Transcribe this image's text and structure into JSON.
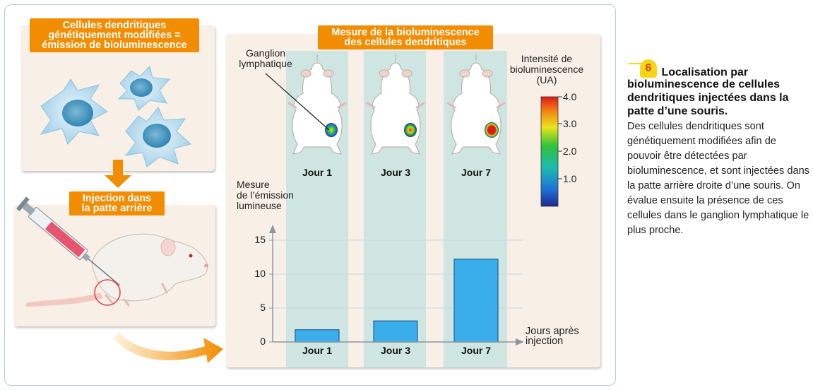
{
  "figure": {
    "label_cells": "Cellules dendritiques\ngénétiquement modifiées =\némission de bioluminescence",
    "label_injection": "Injection dans\nla patte arrière",
    "label_measure": "Mesure de la bioluminescence\ndes cellules dendritiques",
    "ganglion_label": "Ganglion\nlymphatique",
    "intensity_title": "Intensité de\nbioluminescence\n(UA)",
    "color_scale_ticks": [
      "4.0",
      "3.0",
      "2.0",
      "1.0"
    ],
    "mouse_day_labels": [
      "Jour 1",
      "Jour 3",
      "Jour 7"
    ]
  },
  "colors": {
    "orange": "#f28c00",
    "panel": "#f8efe6",
    "column": "#cfe5e1",
    "bar": "#3aaeea"
  },
  "chart_data": {
    "type": "bar",
    "categories": [
      "Jour 1",
      "Jour 3",
      "Jour 7"
    ],
    "values": [
      1.8,
      3.1,
      12.2
    ],
    "ylabel": "Mesure\nde l’émission\nlumineuse",
    "xlabel": "Jours après\ninjection",
    "ylim": [
      0,
      17
    ],
    "yticks": [
      0,
      5,
      10,
      15
    ],
    "grid": true
  },
  "caption": {
    "number": "6",
    "title_first": "Localisation par",
    "title_rest": "bioluminescence de cellules dendritiques injectées dans la patte d’une souris.",
    "body": "Des cellules dendritiques sont génétiquement modifiées afin de pouvoir être détectées par bioluminescence, et sont injectées dans la patte arrière droite d’une souris. On évalue ensuite la présence de ces cellules dans le ganglion lymphatique le plus proche."
  }
}
